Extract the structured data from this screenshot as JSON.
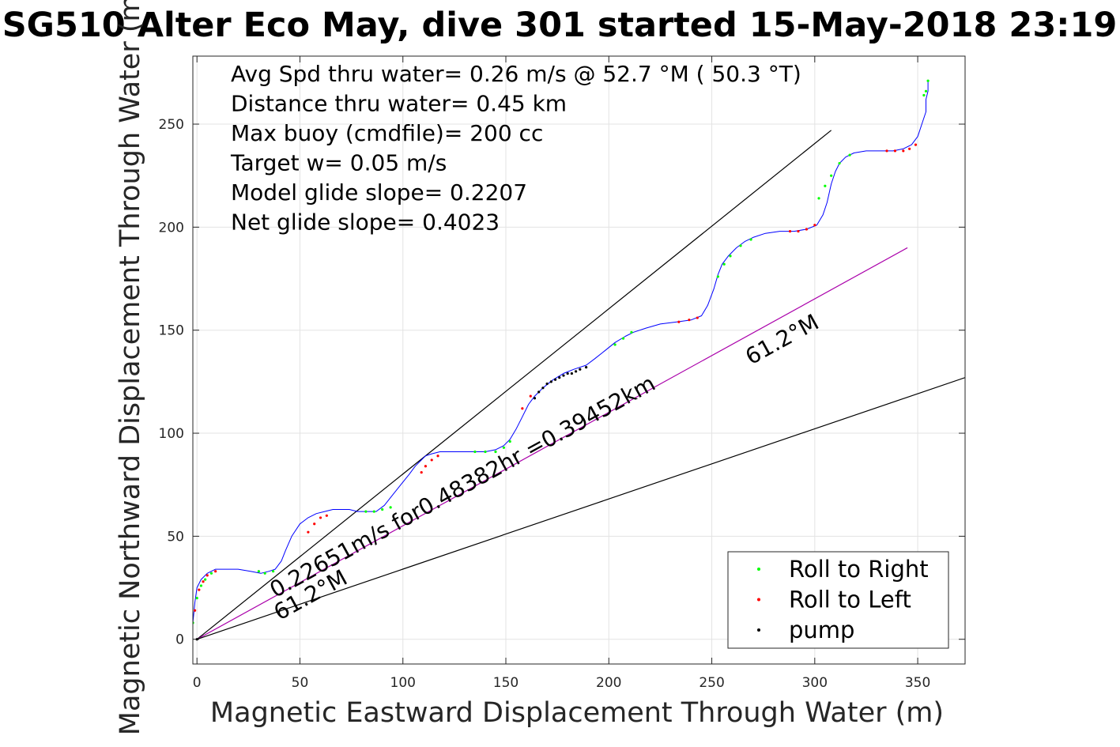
{
  "chart_data": {
    "type": "line",
    "title": "SG510 Alter Eco May, dive 301 started 15-May-2018 23:19",
    "xlabel": "Magnetic Eastward Displacement Through Water (m)",
    "ylabel": "Magnetic Northward Displacement Through Water (m)",
    "xlim": [
      -2,
      373
    ],
    "ylim": [
      -12,
      283
    ],
    "xticks": [
      0,
      50,
      100,
      150,
      200,
      250,
      300,
      350
    ],
    "yticks": [
      0,
      50,
      100,
      150,
      200,
      250
    ],
    "grid": true,
    "info_lines": [
      "Avg Spd thru water=  0.26 m/s @  52.7 °M ( 50.3 °T)",
      "Distance thru water=  0.45 km",
      "Max buoy (cmdfile)= 200 cc",
      "Target w= 0.05 m/s",
      "Model glide slope= 0.2207",
      "Net glide slope= 0.4023"
    ],
    "annotations": [
      {
        "text": "0.22651m/s for0.48382hr =0.39452km",
        "x": 38,
        "y": 20,
        "angle_data_deg": 28.8
      },
      {
        "text": "61.2°M",
        "x": 40,
        "y": 9,
        "angle_data_deg": 28.8
      },
      {
        "text": "61.2°M",
        "x": 269,
        "y": 133,
        "angle_data_deg": 28.8
      }
    ],
    "reference_lines": [
      {
        "name": "upper",
        "color": "#000000",
        "x": [
          0,
          308
        ],
        "y": [
          0,
          247
        ]
      },
      {
        "name": "heading",
        "color": "#aa00aa",
        "x": [
          0,
          345
        ],
        "y": [
          0,
          190
        ]
      },
      {
        "name": "lower",
        "color": "#000000",
        "x": [
          0,
          373
        ],
        "y": [
          0,
          127
        ]
      }
    ],
    "track": {
      "color": "#0000ff",
      "x": [
        -2,
        -2,
        -1,
        0,
        2,
        5,
        9,
        14,
        20,
        26,
        31,
        35,
        38,
        41,
        43,
        46,
        50,
        54,
        58,
        62,
        66,
        70,
        74,
        78,
        83,
        87,
        91,
        95,
        99,
        103,
        106,
        109,
        111,
        114,
        118,
        125,
        133,
        140,
        145,
        149,
        152,
        155,
        158,
        161,
        164,
        168,
        173,
        178,
        183,
        189,
        193,
        198,
        203,
        208,
        212,
        218,
        225,
        233,
        240,
        245,
        248,
        251,
        253,
        255,
        258,
        262,
        266,
        270,
        276,
        283,
        290,
        296,
        301,
        304,
        306,
        308,
        310,
        312,
        315,
        319,
        325,
        332,
        338,
        343,
        347,
        350,
        352,
        354,
        354,
        355,
        355
      ],
      "y": [
        0,
        8,
        18,
        25,
        29,
        32,
        34,
        34,
        34,
        33,
        32,
        33,
        34,
        38,
        43,
        50,
        56,
        59,
        61,
        62,
        63,
        63,
        63,
        62,
        62,
        62,
        65,
        70,
        75,
        80,
        84,
        87,
        89,
        90,
        91,
        91,
        91,
        91,
        92,
        94,
        97,
        102,
        108,
        114,
        118,
        122,
        126,
        129,
        131,
        133,
        136,
        140,
        144,
        147,
        149,
        151,
        153,
        154,
        155,
        157,
        162,
        170,
        177,
        182,
        186,
        190,
        193,
        195,
        197,
        198,
        198,
        199,
        201,
        206,
        212,
        221,
        227,
        231,
        234,
        236,
        237,
        237,
        237,
        238,
        240,
        244,
        250,
        256,
        262,
        266,
        271
      ]
    },
    "series": [
      {
        "name": "Roll to Right",
        "color": "#00ff00",
        "x": [
          -2,
          0,
          2,
          4,
          7,
          30,
          33,
          37,
          82,
          86,
          90,
          94,
          135,
          140,
          145,
          149,
          152,
          203,
          207,
          211,
          253,
          256,
          259,
          264,
          269,
          302,
          305,
          308,
          312,
          317,
          353,
          354,
          355
        ],
        "y": [
          8,
          20,
          26,
          29,
          32,
          33,
          32,
          33,
          62,
          62,
          63,
          64,
          91,
          91,
          91,
          93,
          96,
          143,
          146,
          149,
          176,
          182,
          186,
          191,
          194,
          214,
          220,
          225,
          231,
          235,
          264,
          266,
          271
        ]
      },
      {
        "name": "Roll to Left",
        "color": "#ff0000",
        "x": [
          -1,
          1,
          3,
          5,
          9,
          54,
          57,
          60,
          63,
          109,
          111,
          114,
          117,
          158,
          162,
          234,
          239,
          243,
          288,
          292,
          296,
          300,
          335,
          339,
          343,
          346,
          349
        ],
        "y": [
          14,
          24,
          28,
          31,
          33,
          52,
          56,
          59,
          60,
          81,
          84,
          87,
          89,
          112,
          118,
          154,
          155,
          156,
          198,
          198,
          199,
          201,
          237,
          237,
          237,
          238,
          240
        ]
      },
      {
        "name": "pump",
        "color": "#000000",
        "x": [
          0,
          164,
          166,
          168,
          170,
          172,
          174,
          176,
          178,
          180,
          182,
          184,
          186,
          189
        ],
        "y": [
          0,
          117,
          120,
          122,
          124,
          125,
          126,
          127,
          128,
          129,
          129,
          130,
          131,
          132
        ]
      }
    ],
    "legend": {
      "location": "bottom-right",
      "entries": [
        "Roll to Right",
        "Roll to Left",
        "pump"
      ]
    }
  }
}
